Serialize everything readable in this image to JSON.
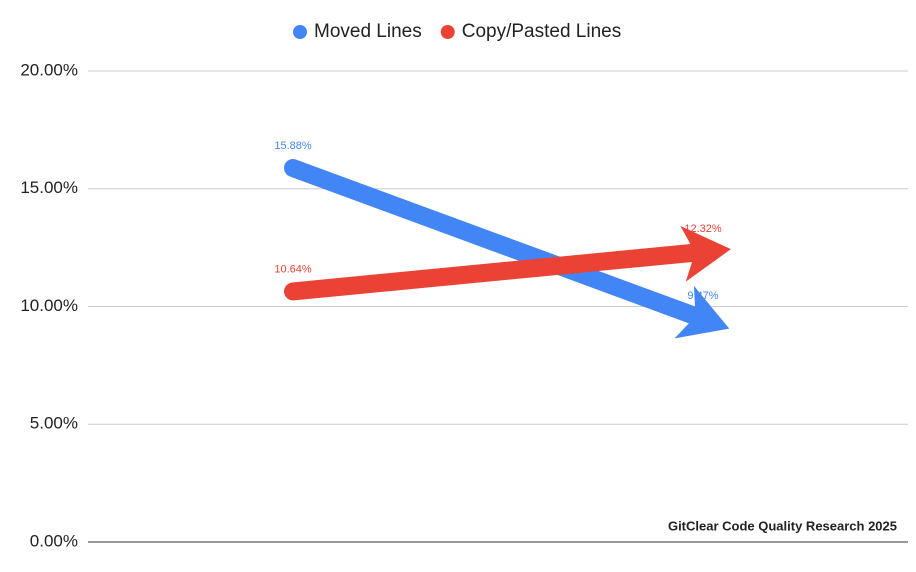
{
  "chart_data": {
    "type": "line",
    "categories": [
      null,
      null
    ],
    "series": [
      {
        "name": "Moved Lines",
        "color": "#4285f4",
        "values": [
          15.88,
          9.47
        ],
        "value_labels": [
          "15.88%",
          "9.47%"
        ]
      },
      {
        "name": "Copy/Pasted Lines",
        "color": "#ea4335",
        "values": [
          10.64,
          12.32
        ],
        "value_labels": [
          "10.64%",
          "12.32%"
        ]
      }
    ],
    "ylim": [
      0,
      20
    ],
    "yticks": [
      {
        "value": 0,
        "label": "0.00%"
      },
      {
        "value": 5,
        "label": "5.00%"
      },
      {
        "value": 10,
        "label": "10.00%"
      },
      {
        "value": 15,
        "label": "15.00%"
      },
      {
        "value": 20,
        "label": "20.00%"
      }
    ],
    "grid": true,
    "legend": "top",
    "annotation": "GitClear Code Quality Research 2025"
  }
}
